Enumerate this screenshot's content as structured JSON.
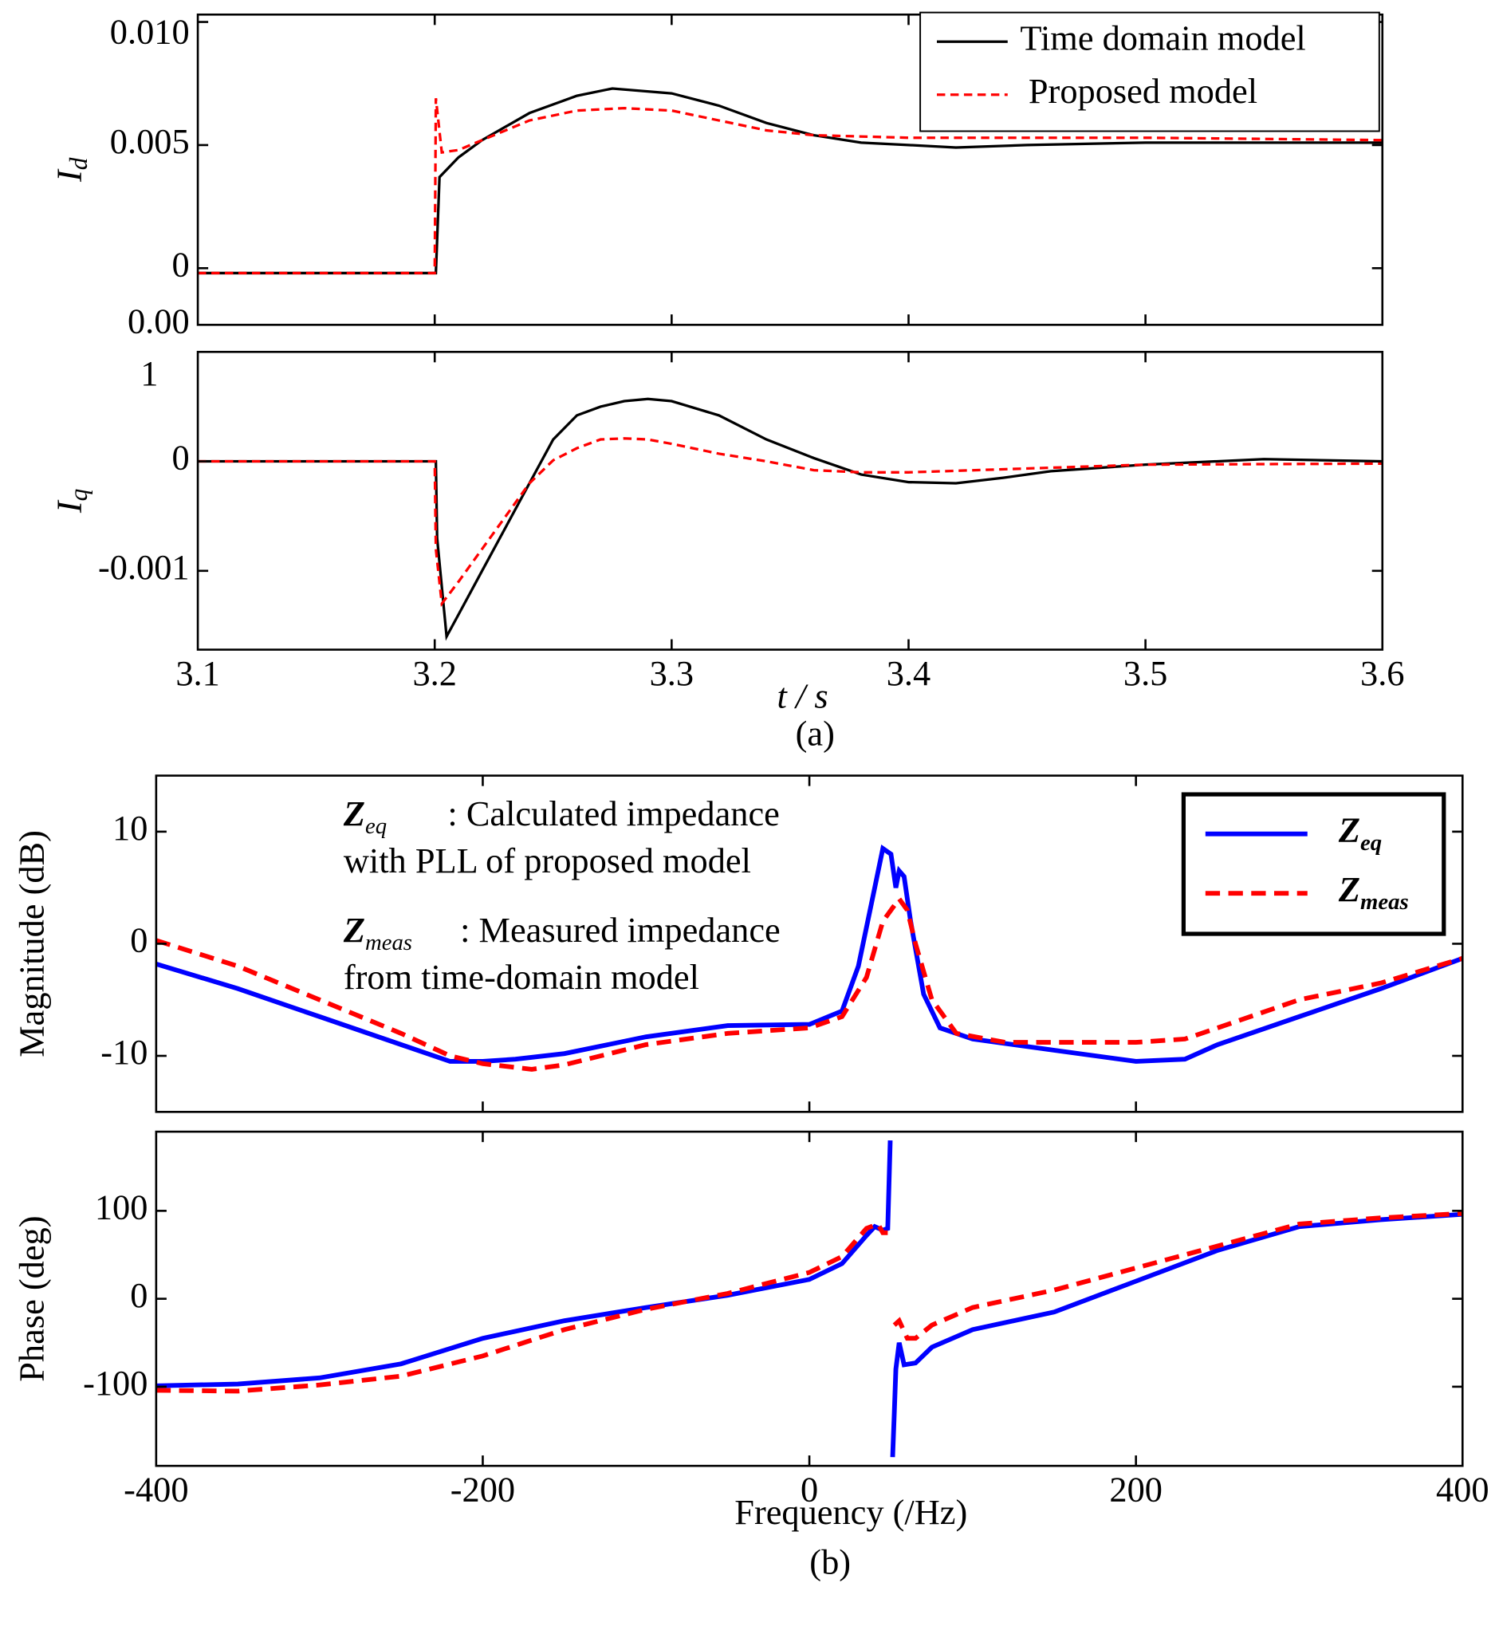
{
  "chart_data": [
    {
      "type": "line",
      "ylabel": {
        "main": "I",
        "sub": "d"
      },
      "xlim": [
        3.1,
        3.6
      ],
      "ylim": [
        -0.0023,
        0.0103
      ],
      "yticks": [
        {
          "value": 0.01,
          "label": "0.010"
        },
        {
          "value": 0.005,
          "label": "0.005"
        },
        0,
        {
          "value": -0.0023,
          "label": "0.00"
        }
      ],
      "legend": "upper right",
      "series": [
        {
          "name": "Time domain model",
          "color": "#000000",
          "style": "solid",
          "x": [
            3.1,
            3.2005,
            3.202,
            3.21,
            3.22,
            3.24,
            3.26,
            3.275,
            3.3,
            3.32,
            3.34,
            3.36,
            3.38,
            3.4,
            3.42,
            3.45,
            3.5,
            3.6
          ],
          "values": [
            -0.0002,
            -0.0002,
            0.0037,
            0.0045,
            0.0052,
            0.0063,
            0.007,
            0.0073,
            0.0071,
            0.0066,
            0.0059,
            0.0054,
            0.0051,
            0.005,
            0.0049,
            0.005,
            0.0051,
            0.0051
          ]
        },
        {
          "name": "Proposed model",
          "color": "#ff0000",
          "style": "dashed",
          "x": [
            3.1,
            3.2,
            3.2005,
            3.203,
            3.21,
            3.22,
            3.24,
            3.26,
            3.28,
            3.3,
            3.32,
            3.34,
            3.36,
            3.4,
            3.5,
            3.6
          ],
          "values": [
            -0.0002,
            -0.0002,
            0.0069,
            0.0047,
            0.0048,
            0.0052,
            0.006,
            0.0064,
            0.0065,
            0.0064,
            0.006,
            0.0056,
            0.0054,
            0.0053,
            0.0053,
            0.0052
          ]
        }
      ]
    },
    {
      "type": "line",
      "ylabel": {
        "main": "I",
        "sub": "q"
      },
      "xlim": [
        3.1,
        3.6
      ],
      "ylim": [
        -0.00172,
        0.001
      ],
      "clipped_tick_label": "1",
      "yticks": [
        0,
        {
          "value": -0.001,
          "label": "-0.001"
        }
      ],
      "xticks": [
        3.1,
        3.2,
        3.3,
        3.4,
        3.5,
        3.6
      ],
      "xlabel": "t / s",
      "caption": "(a)",
      "series": [
        {
          "color": "#000000",
          "style": "solid",
          "x": [
            3.1,
            3.2005,
            3.201,
            3.205,
            3.21,
            3.22,
            3.23,
            3.24,
            3.25,
            3.26,
            3.27,
            3.28,
            3.29,
            3.3,
            3.32,
            3.34,
            3.36,
            3.38,
            3.4,
            3.42,
            3.44,
            3.46,
            3.5,
            3.55,
            3.6
          ],
          "values": [
            0,
            0,
            -0.0007,
            -0.0016,
            -0.0014,
            -0.001,
            -0.0006,
            -0.0002,
            0.0002,
            0.00042,
            0.0005,
            0.00055,
            0.00057,
            0.00055,
            0.00042,
            0.0002,
            3e-05,
            -0.00012,
            -0.00019,
            -0.0002,
            -0.00015,
            -9e-05,
            -3e-05,
            2e-05,
            0
          ]
        },
        {
          "color": "#ff0000",
          "style": "dashed",
          "x": [
            3.1,
            3.2,
            3.2005,
            3.203,
            3.21,
            3.22,
            3.23,
            3.24,
            3.25,
            3.26,
            3.27,
            3.28,
            3.29,
            3.3,
            3.32,
            3.34,
            3.36,
            3.38,
            3.4,
            3.5,
            3.6
          ],
          "values": [
            0,
            0,
            -0.0008,
            -0.0013,
            -0.0011,
            -0.0008,
            -0.0005,
            -0.0002,
            1e-05,
            0.00012,
            0.0002,
            0.00021,
            0.0002,
            0.00016,
            7e-05,
            0,
            -8e-05,
            -0.0001,
            -0.0001,
            -3e-05,
            -2e-05
          ]
        }
      ]
    },
    {
      "type": "line",
      "ylabel": "Magnitude (dB)",
      "xlim": [
        -400,
        400
      ],
      "ylim": [
        -15,
        15
      ],
      "yticks": [
        10,
        0,
        -10
      ],
      "legend": "upper right",
      "annotations": [
        {
          "symbol": "Z",
          "symbol_sub": "eq",
          "text": ": Calculated impedance",
          "text2": "with PLL of proposed model"
        },
        {
          "symbol": "Z",
          "symbol_sub": "meas",
          "text": ": Measured impedance",
          "text2": "from time-domain model"
        }
      ],
      "series": [
        {
          "name": "Z",
          "name_sub": "eq",
          "color": "#0000ff",
          "style": "solid",
          "x": [
            -400,
            -350,
            -300,
            -250,
            -220,
            -200,
            -180,
            -150,
            -100,
            -50,
            0,
            20,
            30,
            40,
            45,
            50,
            53,
            55,
            58,
            62,
            70,
            80,
            100,
            150,
            200,
            230,
            250,
            300,
            350,
            400
          ],
          "values": [
            -1.8,
            -4,
            -6.5,
            -9,
            -10.5,
            -10.5,
            -10.3,
            -9.8,
            -8.3,
            -7.3,
            -7.2,
            -6,
            -2,
            5,
            8.5,
            8,
            5,
            6.5,
            6,
            2,
            -4.5,
            -7.5,
            -8.5,
            -9.5,
            -10.5,
            -10.3,
            -9,
            -6.5,
            -4,
            -1.3
          ]
        },
        {
          "name": "Z",
          "name_sub": "meas",
          "color": "#ff0000",
          "style": "dashed",
          "x": [
            -400,
            -350,
            -300,
            -250,
            -220,
            -200,
            -170,
            -150,
            -100,
            -50,
            0,
            20,
            35,
            45,
            50,
            55,
            60,
            65,
            75,
            90,
            120,
            150,
            200,
            230,
            250,
            300,
            350,
            400
          ],
          "values": [
            0.3,
            -2,
            -5,
            -8,
            -10,
            -10.7,
            -11.2,
            -10.8,
            -9,
            -8,
            -7.5,
            -6.5,
            -3,
            2,
            3,
            4,
            3,
            0,
            -5,
            -8,
            -8.8,
            -8.8,
            -8.8,
            -8.5,
            -7.5,
            -5,
            -3.5,
            -1.3
          ]
        }
      ]
    },
    {
      "type": "line",
      "ylabel": "Phase (deg)",
      "xlim": [
        -400,
        400
      ],
      "ylim": [
        -190,
        190
      ],
      "yticks": [
        100,
        0,
        -100
      ],
      "xticks": [
        -400,
        -200,
        0,
        200,
        400
      ],
      "xlabel": "Frequency (/Hz)",
      "caption": "(b)",
      "series": [
        {
          "color": "#0000ff",
          "style": "solid",
          "x": [
            -400,
            -350,
            -300,
            -250,
            -200,
            -150,
            -100,
            -50,
            0,
            20,
            35,
            40,
            45,
            48,
            49.5,
            50,
            51,
            52,
            53,
            55,
            58,
            65,
            75,
            100,
            150,
            200,
            250,
            300,
            350,
            400
          ],
          "values": [
            -99,
            -97,
            -90,
            -74,
            -45,
            -25,
            -10,
            4,
            22,
            40,
            72,
            82,
            78,
            80,
            180,
            null,
            -180,
            -130,
            -80,
            -50,
            -75,
            -73,
            -55,
            -35,
            -15,
            20,
            55,
            82,
            90,
            96
          ]
        },
        {
          "color": "#ff0000",
          "style": "dashed",
          "x": [
            -400,
            -350,
            -300,
            -250,
            -200,
            -150,
            -100,
            -50,
            0,
            20,
            35,
            42,
            45,
            48,
            50,
            52,
            55,
            60,
            65,
            75,
            100,
            150,
            200,
            250,
            300,
            350,
            400
          ],
          "values": [
            -104,
            -105,
            -98,
            -88,
            -65,
            -35,
            -12,
            6,
            30,
            48,
            80,
            85,
            75,
            75,
            null,
            -30,
            -25,
            -45,
            -45,
            -30,
            -10,
            10,
            35,
            60,
            85,
            92,
            97
          ]
        }
      ]
    }
  ]
}
